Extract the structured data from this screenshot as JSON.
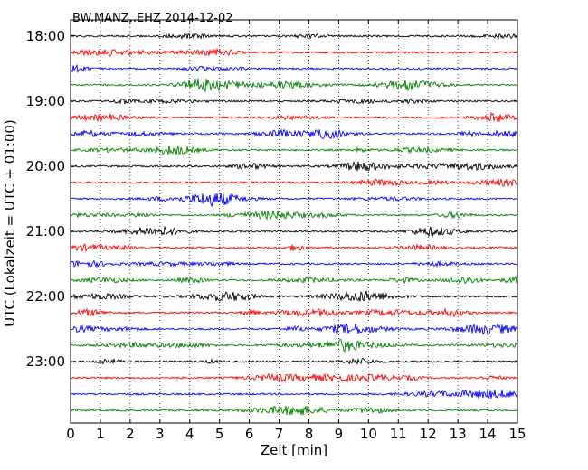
{
  "chart_data": {
    "type": "line",
    "title": "BW.MANZ..EHZ 2014-12-02",
    "xlabel": "Zeit  [min]",
    "ylabel": "UTC (Lokalzeit = UTC + 01:00)",
    "xlim": [
      0,
      15
    ],
    "x_ticks": [
      "0",
      "1",
      "2",
      "3",
      "4",
      "5",
      "6",
      "7",
      "8",
      "9",
      "10",
      "11",
      "12",
      "13",
      "14",
      "15"
    ],
    "y_ticks": [
      "18:00",
      "19:00",
      "20:00",
      "21:00",
      "22:00",
      "23:00"
    ],
    "grid": "vertical dotted lines at each minute",
    "trace_colors": [
      "#000000",
      "#ff0000",
      "#0000ff",
      "#007f00"
    ],
    "series": [
      {
        "start": "18:00",
        "color": "#000000"
      },
      {
        "start": "18:15",
        "color": "#ff0000"
      },
      {
        "start": "18:30",
        "color": "#0000ff"
      },
      {
        "start": "18:45",
        "color": "#007f00"
      },
      {
        "start": "19:00",
        "color": "#000000"
      },
      {
        "start": "19:15",
        "color": "#ff0000"
      },
      {
        "start": "19:30",
        "color": "#0000ff"
      },
      {
        "start": "19:45",
        "color": "#007f00"
      },
      {
        "start": "20:00",
        "color": "#000000"
      },
      {
        "start": "20:15",
        "color": "#ff0000"
      },
      {
        "start": "20:30",
        "color": "#0000ff"
      },
      {
        "start": "20:45",
        "color": "#007f00"
      },
      {
        "start": "21:00",
        "color": "#000000"
      },
      {
        "start": "21:15",
        "color": "#ff0000"
      },
      {
        "start": "21:30",
        "color": "#0000ff"
      },
      {
        "start": "21:45",
        "color": "#007f00"
      },
      {
        "start": "22:00",
        "color": "#000000"
      },
      {
        "start": "22:15",
        "color": "#ff0000"
      },
      {
        "start": "22:30",
        "color": "#0000ff"
      },
      {
        "start": "22:45",
        "color": "#007f00"
      },
      {
        "start": "23:00",
        "color": "#000000"
      },
      {
        "start": "23:15",
        "color": "#ff0000"
      },
      {
        "start": "23:30",
        "color": "#0000ff"
      },
      {
        "start": "23:45",
        "color": "#007f00"
      }
    ]
  }
}
